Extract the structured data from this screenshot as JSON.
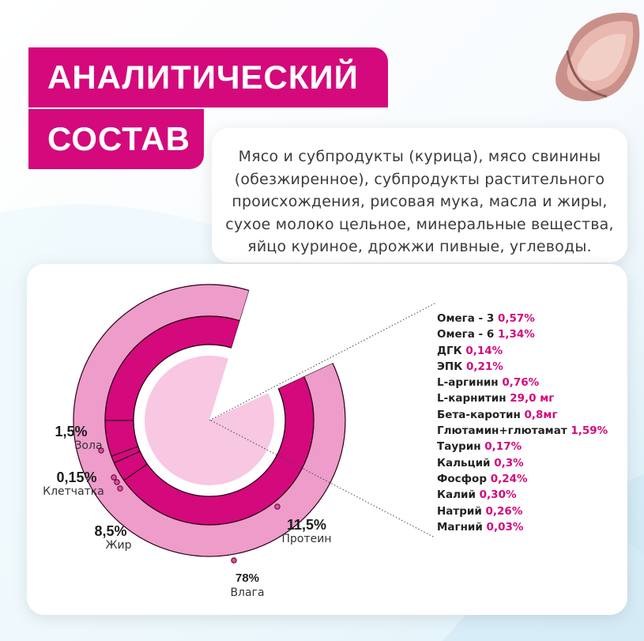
{
  "title": {
    "line1": "АНАЛИТИЧЕСКИЙ",
    "line2": "СОСТАВ"
  },
  "composition": [
    "Мясо и субпродукты (курица), мясо свинины",
    "(обезжиренное), субпродукты растительного",
    "происхождения, рисовая мука, масла и жиры,",
    "сухое молоко цельное, минеральные вещества,",
    "яйцо куриное, дрожжи пивные, углеводы."
  ],
  "chart_data": {
    "type": "pie",
    "categories": [
      "Влага",
      "Протеин",
      "Жир",
      "Зола",
      "Клетчатка"
    ],
    "values": [
      78,
      11.5,
      8.5,
      1.5,
      0.15
    ],
    "labels": [
      {
        "key": "moisture",
        "value": "78%",
        "name": "Влага"
      },
      {
        "key": "protein",
        "value": "11,5%",
        "name": "Протеин"
      },
      {
        "key": "fat",
        "value": "8,5%",
        "name": "Жир"
      },
      {
        "key": "ash",
        "value": "1,5%",
        "name": "Зола"
      },
      {
        "key": "fiber",
        "value": "0,15%",
        "name": "Клетчатка"
      }
    ]
  },
  "details": [
    {
      "name": "Омега - 3",
      "value": "0,57%"
    },
    {
      "name": "Омега - 6",
      "value": "1,34%"
    },
    {
      "name": "ДГК",
      "value": "0,14%"
    },
    {
      "name": "ЭПК",
      "value": "0,21%"
    },
    {
      "name": "L-аргинин",
      "value": "0,76%"
    },
    {
      "name": "L-карнитин",
      "value": "29,0 мг"
    },
    {
      "name": "Бета-каротин",
      "value": "0,8мг"
    },
    {
      "name": "Глютамин+глютамат",
      "value": "1,59%"
    },
    {
      "name": "Таурин",
      "value": "0,17%"
    },
    {
      "name": "Кальций",
      "value": "0,3%"
    },
    {
      "name": "Фосфор",
      "value": "0,24%"
    },
    {
      "name": "Калий",
      "value": "0,30%"
    },
    {
      "name": "Натрий",
      "value": "0,26%"
    },
    {
      "name": "Магний",
      "value": "0,03%"
    }
  ],
  "colors": {
    "accent": "#d3097c",
    "ring_outer": "#ee9cca",
    "ring_inner": "#d3097c",
    "center": "#f8c7e2"
  },
  "icons": {
    "food": "meat-chunk-image"
  }
}
